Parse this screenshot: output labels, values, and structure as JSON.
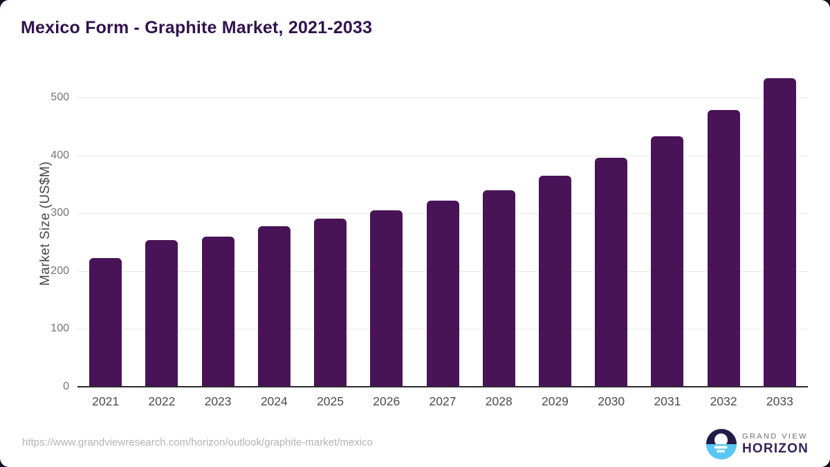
{
  "header": {
    "title": "Mexico Form - Graphite Market, 2021-2033"
  },
  "chart_data": {
    "type": "bar",
    "title": "Mexico Form - Graphite Market, 2021-2033",
    "categories": [
      "2021",
      "2022",
      "2023",
      "2024",
      "2025",
      "2026",
      "2027",
      "2028",
      "2029",
      "2030",
      "2031",
      "2032",
      "2033"
    ],
    "values": [
      222,
      254,
      260,
      278,
      291,
      305,
      322,
      340,
      365,
      396,
      433,
      478,
      534
    ],
    "xlabel": "",
    "ylabel": "Market Size (US$M)",
    "yticks": [
      0,
      100,
      200,
      300,
      400,
      500
    ],
    "ylim": [
      0,
      550
    ],
    "grid": true,
    "legend": "none",
    "bar_color": "#491457"
  },
  "footer": {
    "source_url": "https://www.grandviewresearch.com/horizon/outlook/graphite-market/mexico",
    "logo": {
      "line1": "GRAND VIEW",
      "line2": "HORIZON"
    }
  },
  "colors": {
    "bar": "#491457",
    "title": "#31124e",
    "gridline": "#e8e8e8",
    "axis_line": "#2b2b2b",
    "tick_label": "#757575",
    "x_label": "#4b4b4b",
    "logo_dark": "#241b49",
    "logo_blue": "#58c7f3"
  }
}
